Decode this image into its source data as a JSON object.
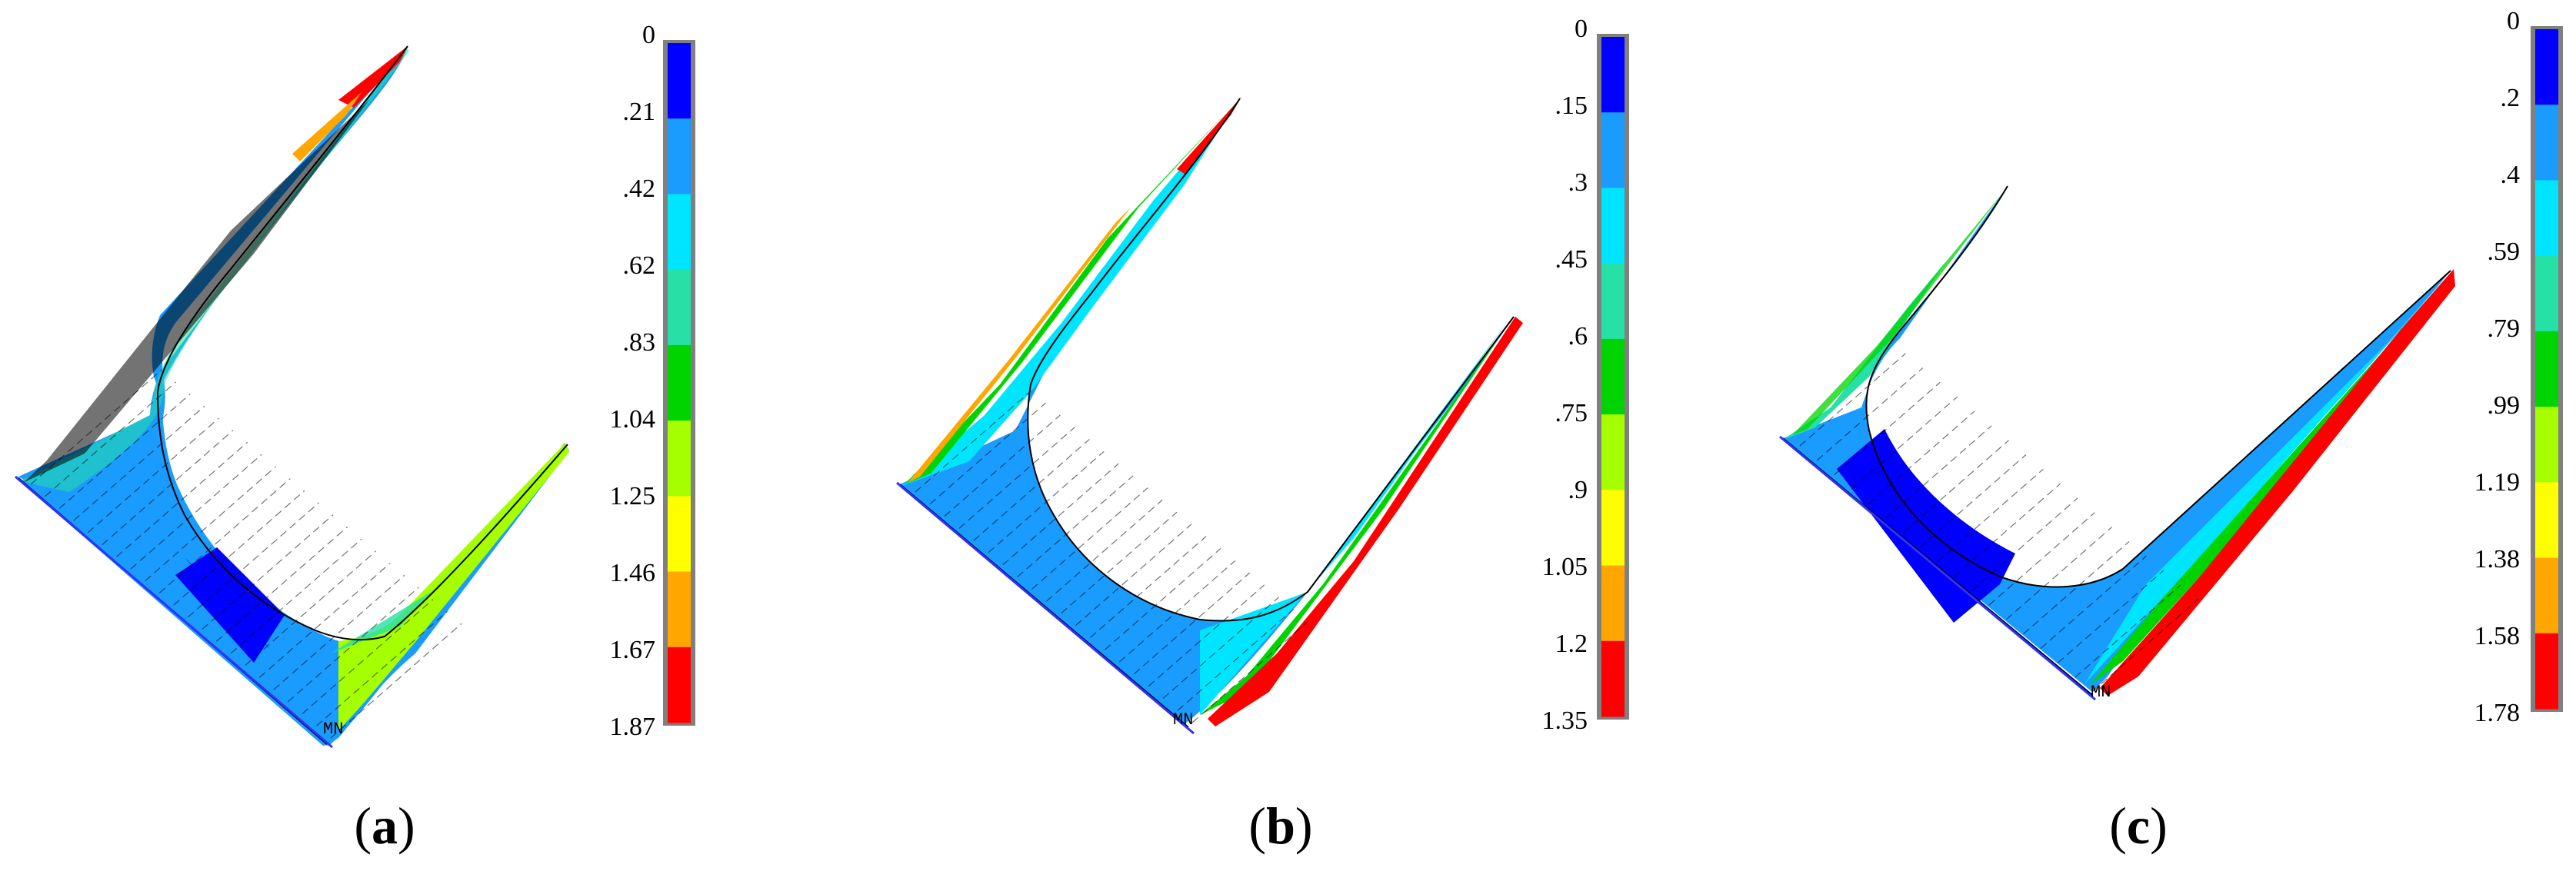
{
  "palette": [
    "#0000ff",
    "#1a9cff",
    "#00e5ff",
    "#26e0a6",
    "#00d400",
    "#a6ff00",
    "#ffff00",
    "#ffa600",
    "#ff0000"
  ],
  "dark_palette": [
    "#0000b0",
    "#1070c0",
    "#00a0b0",
    "#109070",
    "#009000",
    "#70b000",
    "#b0b000",
    "#b07000",
    "#c00000"
  ],
  "outline_color": "#000000",
  "node_marker": "MN",
  "panels": [
    {
      "letter": "a",
      "legend_ticks": [
        "0",
        ".21",
        ".42",
        ".62",
        ".83",
        "1.04",
        "1.25",
        "1.46",
        "1.67",
        "1.87"
      ],
      "left_arm_band": 3,
      "base_left_band": 1,
      "base_mid_band": 0,
      "base_right_band": 1,
      "right_arm_band": 5,
      "left_tip_band": 8,
      "right_tip_band": 5
    },
    {
      "letter": "b",
      "legend_ticks": [
        "0",
        ".15",
        ".3",
        ".45",
        ".6",
        ".75",
        ".9",
        "1.05",
        "1.2",
        "1.35"
      ],
      "left_arm_band": 2,
      "base_left_band": 1,
      "base_mid_band": 1,
      "base_right_band": 2,
      "right_arm_band": 8,
      "left_tip_band": 8,
      "right_tip_band": 8
    },
    {
      "letter": "c",
      "legend_ticks": [
        "0",
        ".2",
        ".4",
        ".59",
        ".79",
        ".99",
        "1.19",
        "1.38",
        "1.58",
        "1.78"
      ],
      "left_arm_band": 2,
      "base_left_band": 1,
      "base_mid_band": 0,
      "base_right_band": 1,
      "right_arm_band": 8,
      "left_tip_band": 4,
      "right_tip_band": 8
    }
  ]
}
